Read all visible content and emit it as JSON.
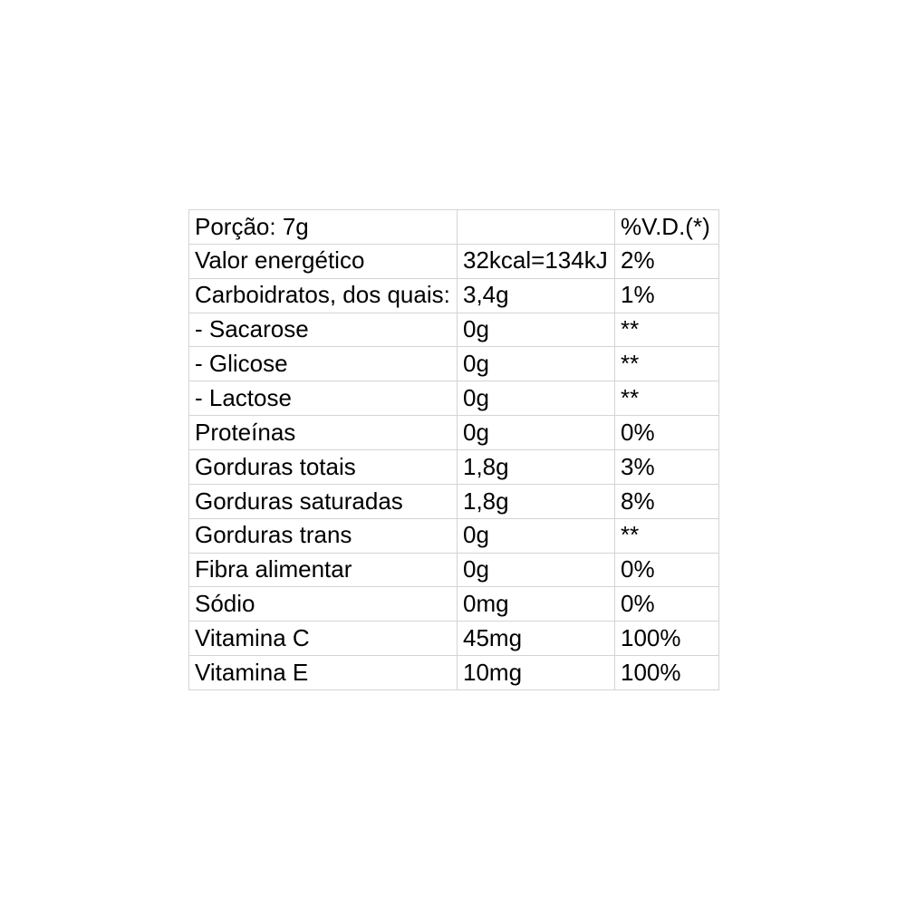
{
  "page": {
    "background_color": "#ffffff"
  },
  "table": {
    "border_color": "#d4d4d4",
    "text_color": "#000000",
    "header": {
      "serving": "Porção: 7g",
      "spacer": "",
      "daily_value": "%V.D.(*)"
    },
    "rows": [
      {
        "nutrient": "Valor energético",
        "amount": "32kcal=134kJ",
        "daily_value": "2%"
      },
      {
        "nutrient": "Carboidratos, dos quais:",
        "amount": "3,4g",
        "daily_value": "1%"
      },
      {
        "nutrient": "- Sacarose",
        "amount": "0g",
        "daily_value": "**"
      },
      {
        "nutrient": "- Glicose",
        "amount": "0g",
        "daily_value": "**"
      },
      {
        "nutrient": "- Lactose",
        "amount": "0g",
        "daily_value": "**"
      },
      {
        "nutrient": "Proteínas",
        "amount": "0g",
        "daily_value": "0%"
      },
      {
        "nutrient": "Gorduras totais",
        "amount": "1,8g",
        "daily_value": "3%"
      },
      {
        "nutrient": "Gorduras saturadas",
        "amount": "1,8g",
        "daily_value": "8%"
      },
      {
        "nutrient": "Gorduras trans",
        "amount": "0g",
        "daily_value": "**"
      },
      {
        "nutrient": "Fibra alimentar",
        "amount": "0g",
        "daily_value": "0%"
      },
      {
        "nutrient": "Sódio",
        "amount": "0mg",
        "daily_value": "0%"
      },
      {
        "nutrient": "Vitamina C",
        "amount": "45mg",
        "daily_value": "100%"
      },
      {
        "nutrient": "Vitamina E",
        "amount": "10mg",
        "daily_value": "100%"
      }
    ]
  }
}
